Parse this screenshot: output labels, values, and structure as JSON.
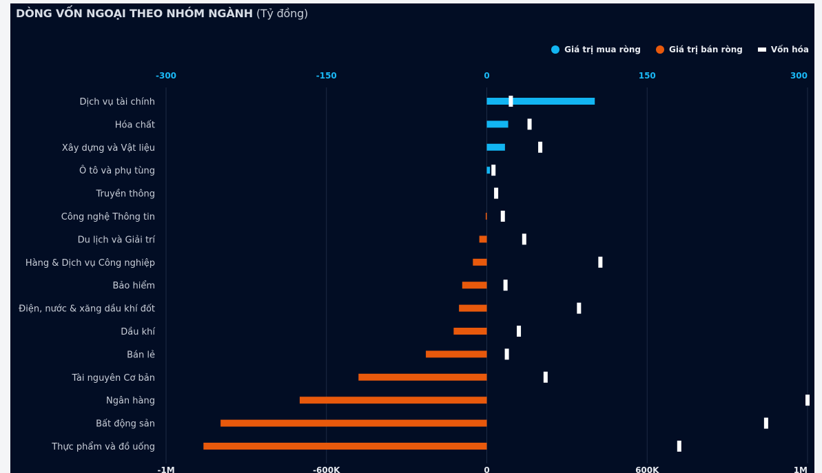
{
  "title": {
    "main": "DÒNG VỐN NGOẠI THEO NHÓM NGÀNH",
    "unit": "(Tỷ đồng)"
  },
  "legend": {
    "buy_label": "Giá trị mua ròng",
    "sell_label": "Giá trị bán ròng",
    "cap_label": "Vốn hóa"
  },
  "colors": {
    "buy": "#12b5f2",
    "sell": "#e8590c",
    "cap": "#ffffff",
    "grid": "#1d2a45"
  },
  "chart_data": {
    "type": "bar",
    "orientation": "horizontal",
    "categories": [
      "Dịch vụ tài chính",
      "Hóa chất",
      "Xây dựng và Vật liệu",
      "Ô tô và phụ tùng",
      "Truyền thông",
      "Công nghệ Thông tin",
      "Du lịch và Giải trí",
      "Hàng & Dịch vụ Công nghiệp",
      "Bảo hiểm",
      "Điện, nước & xăng dầu khí đốt",
      "Dầu khí",
      "Bán lẻ",
      "Tài nguyên Cơ bản",
      "Ngân hàng",
      "Bất động sản",
      "Thực phẩm và đồ uống"
    ],
    "series": [
      {
        "name": "Giá trị mua ròng",
        "axis": "top",
        "values": [
          101,
          20,
          17,
          3,
          0,
          0,
          0,
          0,
          0,
          0,
          0,
          0,
          0,
          0,
          0,
          0
        ]
      },
      {
        "name": "Giá trị bán ròng",
        "axis": "top",
        "values": [
          0,
          0,
          0,
          0,
          0,
          -1,
          -7,
          -13,
          -23,
          -26,
          -31,
          -57,
          -120,
          -175,
          -249,
          -265
        ]
      },
      {
        "name": "Vốn hóa",
        "axis": "bottom",
        "values": [
          90000,
          160000,
          200000,
          25000,
          35000,
          60000,
          140000,
          425000,
          70000,
          345000,
          120000,
          75000,
          220000,
          1200000,
          1045000,
          720000
        ]
      }
    ],
    "top_axis": {
      "ticks": [
        "-300",
        "-150",
        "0",
        "150",
        "300"
      ],
      "range": [
        -300,
        300
      ]
    },
    "bottom_axis": {
      "ticks": [
        "-1M",
        "-600K",
        "0",
        "600K",
        "1M"
      ],
      "range": [
        -1200000,
        1200000
      ]
    },
    "grid": true,
    "legend_position": "top-right"
  }
}
